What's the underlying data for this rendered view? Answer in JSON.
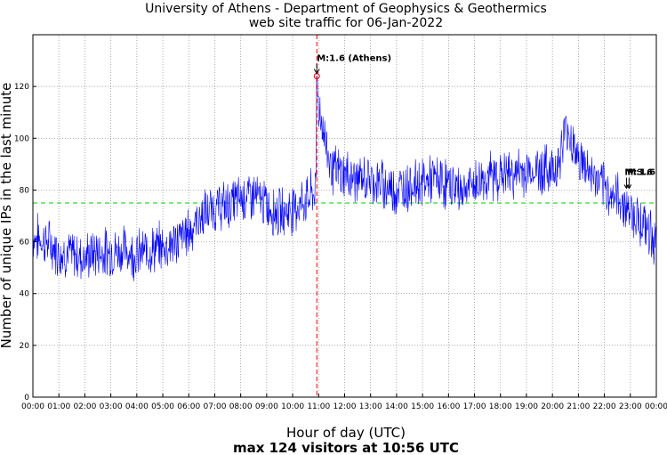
{
  "chart_data": {
    "type": "line",
    "title": "University of Athens - Department of Geophysics & Geothermics",
    "subtitle": "web site traffic for 06-Jan-2022",
    "xlabel": "Hour of day (UTC)",
    "ylabel": "Number of unique IPs in the last minute",
    "footer": "max 124 visitors at 10:56 UTC",
    "xlim": [
      0,
      24
    ],
    "ylim": [
      0,
      140
    ],
    "x_ticks": [
      {
        "value": 0,
        "label": "00:00"
      },
      {
        "value": 1,
        "label": "01:00"
      },
      {
        "value": 2,
        "label": "02:00"
      },
      {
        "value": 3,
        "label": "03:00"
      },
      {
        "value": 4,
        "label": "04:00"
      },
      {
        "value": 5,
        "label": "05:00"
      },
      {
        "value": 6,
        "label": "06:00"
      },
      {
        "value": 7,
        "label": "07:00"
      },
      {
        "value": 8,
        "label": "08:00"
      },
      {
        "value": 9,
        "label": "09:00"
      },
      {
        "value": 10,
        "label": "10:00"
      },
      {
        "value": 11,
        "label": "11:00"
      },
      {
        "value": 12,
        "label": "12:00"
      },
      {
        "value": 13,
        "label": "13:00"
      },
      {
        "value": 14,
        "label": "14:00"
      },
      {
        "value": 15,
        "label": "15:00"
      },
      {
        "value": 16,
        "label": "16:00"
      },
      {
        "value": 17,
        "label": "17:00"
      },
      {
        "value": 18,
        "label": "18:00"
      },
      {
        "value": 19,
        "label": "19:00"
      },
      {
        "value": 20,
        "label": "20:00"
      },
      {
        "value": 21,
        "label": "21:00"
      },
      {
        "value": 22,
        "label": "22:00"
      },
      {
        "value": 23,
        "label": "23:00"
      },
      {
        "value": 24,
        "label": "00:00"
      }
    ],
    "y_ticks": [
      {
        "value": 0,
        "label": "0"
      },
      {
        "value": 20,
        "label": "20"
      },
      {
        "value": 40,
        "label": "40"
      },
      {
        "value": 60,
        "label": "60"
      },
      {
        "value": 80,
        "label": "80"
      },
      {
        "value": 100,
        "label": "100"
      },
      {
        "value": 120,
        "label": "120"
      }
    ],
    "grid": true,
    "series": [
      {
        "color": "#0000ff",
        "x": [
          0,
          0.5,
          1,
          1.5,
          2,
          2.5,
          3,
          3.5,
          4,
          4.5,
          5,
          5.5,
          6,
          6.5,
          7,
          7.5,
          8,
          8.5,
          9,
          9.5,
          10,
          10.5,
          10.9,
          10.93,
          11,
          11.25,
          11.5,
          12,
          12.5,
          13,
          13.5,
          14,
          14.5,
          15,
          15.5,
          16,
          16.5,
          17,
          17.5,
          18,
          18.5,
          19,
          19.5,
          20,
          20.3,
          20.5,
          20.8,
          21,
          21.5,
          22,
          22.5,
          23,
          23.5,
          24
        ],
        "y": [
          62,
          60,
          56,
          55,
          54,
          56,
          56,
          57,
          55,
          57,
          58,
          60,
          64,
          70,
          73,
          74,
          77,
          78,
          74,
          71,
          73,
          76,
          80,
          124,
          112,
          100,
          88,
          86,
          84,
          84,
          82,
          80,
          82,
          83,
          84,
          82,
          80,
          82,
          85,
          86,
          86,
          87,
          88,
          88,
          92,
          104,
          98,
          92,
          86,
          80,
          77,
          72,
          67,
          60
        ]
      }
    ],
    "threshold": {
      "value": 75,
      "color": "#00cc00"
    },
    "events": [
      {
        "x": 10.93,
        "y": 124,
        "label": "M:1.6 (Athens)",
        "color": "#ff0000"
      },
      {
        "x": 22.85,
        "y": 80,
        "label": "M:3.6",
        "color": "#000000"
      },
      {
        "x": 22.95,
        "y": 80,
        "label": "M:1.6",
        "color": "#000000"
      }
    ]
  }
}
